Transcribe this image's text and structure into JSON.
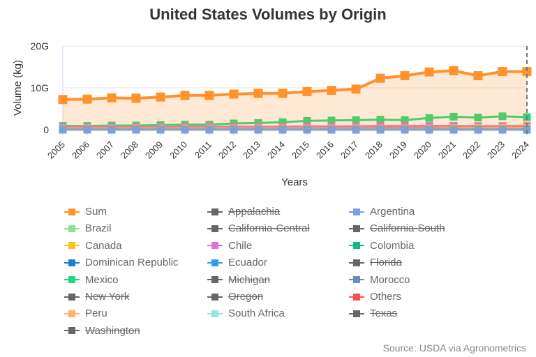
{
  "chart_data": {
    "type": "line",
    "title": "United States Volumes by Origin",
    "xlabel": "Years",
    "ylabel": "Volume (kg)",
    "ylim": [
      0,
      20000000000
    ],
    "yticks": [
      "0",
      "10G",
      "20G"
    ],
    "grid": true,
    "legend_placement": "bottom",
    "categories": [
      "2005",
      "2006",
      "2007",
      "2008",
      "2009",
      "2010",
      "2011",
      "2012",
      "2013",
      "2014",
      "2015",
      "2016",
      "2017",
      "2018",
      "2019",
      "2020",
      "2021",
      "2022",
      "2023",
      "2024"
    ],
    "series": [
      {
        "name": "Sum",
        "color": "#ff922b",
        "visible": true,
        "area": true,
        "values": [
          7200000000.0,
          7300000000.0,
          7600000000.0,
          7500000000.0,
          7800000000.0,
          8200000000.0,
          8200000000.0,
          8500000000.0,
          8700000000.0,
          8700000000.0,
          9100000000.0,
          9400000000.0,
          9700000000.0,
          12300000000.0,
          12900000000.0,
          13800000000.0,
          14100000000.0,
          12900000000.0,
          13900000000.0,
          13900000000.0
        ]
      },
      {
        "name": "Appalachia",
        "color": "#666666",
        "visible": false
      },
      {
        "name": "Argentina",
        "color": "#74a0ea",
        "visible": true,
        "values": [
          100000000.0,
          100000000.0,
          100000000.0,
          100000000.0,
          100000000.0,
          100000000.0,
          100000000.0,
          100000000.0,
          100000000.0,
          100000000.0,
          100000000.0,
          100000000.0,
          100000000.0,
          100000000.0,
          100000000.0,
          100000000.0,
          100000000.0,
          100000000.0,
          100000000.0,
          100000000.0
        ]
      },
      {
        "name": "Brazil",
        "color": "#8ce08c",
        "visible": true,
        "values": [
          50000000.0,
          50000000.0,
          50000000.0,
          50000000.0,
          50000000.0,
          50000000.0,
          50000000.0,
          50000000.0,
          50000000.0,
          50000000.0,
          50000000.0,
          50000000.0,
          50000000.0,
          50000000.0,
          50000000.0,
          50000000.0,
          50000000.0,
          50000000.0,
          50000000.0,
          50000000.0
        ]
      },
      {
        "name": "California-Central",
        "color": "#666666",
        "visible": false
      },
      {
        "name": "California-South",
        "color": "#666666",
        "visible": false
      },
      {
        "name": "Canada",
        "color": "#fcc419",
        "visible": true,
        "values": [
          300000000.0,
          300000000.0,
          300000000.0,
          300000000.0,
          300000000.0,
          300000000.0,
          300000000.0,
          300000000.0,
          300000000.0,
          300000000.0,
          300000000.0,
          300000000.0,
          300000000.0,
          300000000.0,
          300000000.0,
          300000000.0,
          400000000.0,
          400000000.0,
          400000000.0,
          400000000.0
        ]
      },
      {
        "name": "Chile",
        "color": "#e070d8",
        "visible": true,
        "values": [
          600000000.0,
          600000000.0,
          600000000.0,
          600000000.0,
          600000000.0,
          700000000.0,
          700000000.0,
          700000000.0,
          700000000.0,
          700000000.0,
          800000000.0,
          800000000.0,
          800000000.0,
          900000000.0,
          900000000.0,
          900000000.0,
          900000000.0,
          800000000.0,
          800000000.0,
          800000000.0
        ]
      },
      {
        "name": "Colombia",
        "color": "#12b886",
        "visible": true,
        "values": [
          50000000.0,
          50000000.0,
          50000000.0,
          50000000.0,
          50000000.0,
          50000000.0,
          50000000.0,
          50000000.0,
          50000000.0,
          50000000.0,
          50000000.0,
          50000000.0,
          50000000.0,
          50000000.0,
          50000000.0,
          50000000.0,
          50000000.0,
          50000000.0,
          50000000.0,
          50000000.0
        ]
      },
      {
        "name": "Dominican Republic",
        "color": "#1c7ed6",
        "visible": true,
        "values": [
          0,
          0,
          0,
          0,
          0,
          0,
          0,
          0,
          0,
          0,
          0,
          0,
          0,
          0,
          0,
          0,
          0,
          0,
          0,
          0
        ]
      },
      {
        "name": "Ecuador",
        "color": "#339af0",
        "visible": true,
        "values": [
          0,
          0,
          0,
          0,
          0,
          0,
          0,
          0,
          0,
          0,
          0,
          0,
          0,
          0,
          0,
          0,
          0,
          0,
          0,
          0
        ]
      },
      {
        "name": "Florida",
        "color": "#666666",
        "visible": false
      },
      {
        "name": "Mexico",
        "color": "#20dc78",
        "visible": true,
        "values": [
          900000000.0,
          900000000.0,
          1000000000.0,
          1000000000.0,
          1100000000.0,
          1200000000.0,
          1200000000.0,
          1500000000.0,
          1600000000.0,
          1800000000.0,
          2100000000.0,
          2200000000.0,
          2300000000.0,
          2400000000.0,
          2300000000.0,
          2800000000.0,
          3100000000.0,
          2900000000.0,
          3200000000.0,
          3000000000.0
        ]
      },
      {
        "name": "Michigan",
        "color": "#666666",
        "visible": false
      },
      {
        "name": "Morocco",
        "color": "#6c8cc4",
        "visible": true,
        "values": [
          0,
          0,
          0,
          0,
          0,
          0,
          0,
          0,
          0,
          0,
          0,
          0,
          0,
          0,
          0,
          0,
          0,
          0,
          0,
          0
        ]
      },
      {
        "name": "New York",
        "color": "#666666",
        "visible": false
      },
      {
        "name": "Oregon",
        "color": "#666666",
        "visible": false
      },
      {
        "name": "Others",
        "color": "#fa5252",
        "visible": true,
        "values": [
          400000000.0,
          400000000.0,
          400000000.0,
          400000000.0,
          400000000.0,
          400000000.0,
          400000000.0,
          400000000.0,
          400000000.0,
          400000000.0,
          400000000.0,
          400000000.0,
          400000000.0,
          400000000.0,
          400000000.0,
          400000000.0,
          400000000.0,
          400000000.0,
          400000000.0,
          400000000.0
        ]
      },
      {
        "name": "Peru",
        "color": "#ffb36b",
        "visible": true,
        "values": [
          100000000.0,
          100000000.0,
          100000000.0,
          100000000.0,
          100000000.0,
          100000000.0,
          200000000.0,
          200000000.0,
          200000000.0,
          200000000.0,
          300000000.0,
          300000000.0,
          300000000.0,
          400000000.0,
          500000000.0,
          600000000.0,
          900000000.0,
          900000000.0,
          900000000.0,
          1000000000.0
        ]
      },
      {
        "name": "South Africa",
        "color": "#96e6de",
        "visible": true,
        "values": [
          100000000.0,
          100000000.0,
          100000000.0,
          100000000.0,
          100000000.0,
          100000000.0,
          100000000.0,
          100000000.0,
          100000000.0,
          100000000.0,
          100000000.0,
          100000000.0,
          100000000.0,
          100000000.0,
          100000000.0,
          100000000.0,
          100000000.0,
          100000000.0,
          100000000.0,
          100000000.0
        ]
      },
      {
        "name": "Texas",
        "color": "#666666",
        "visible": false
      },
      {
        "name": "Washington",
        "color": "#666666",
        "visible": false
      }
    ]
  },
  "source": "Source: USDA via Agronometrics"
}
